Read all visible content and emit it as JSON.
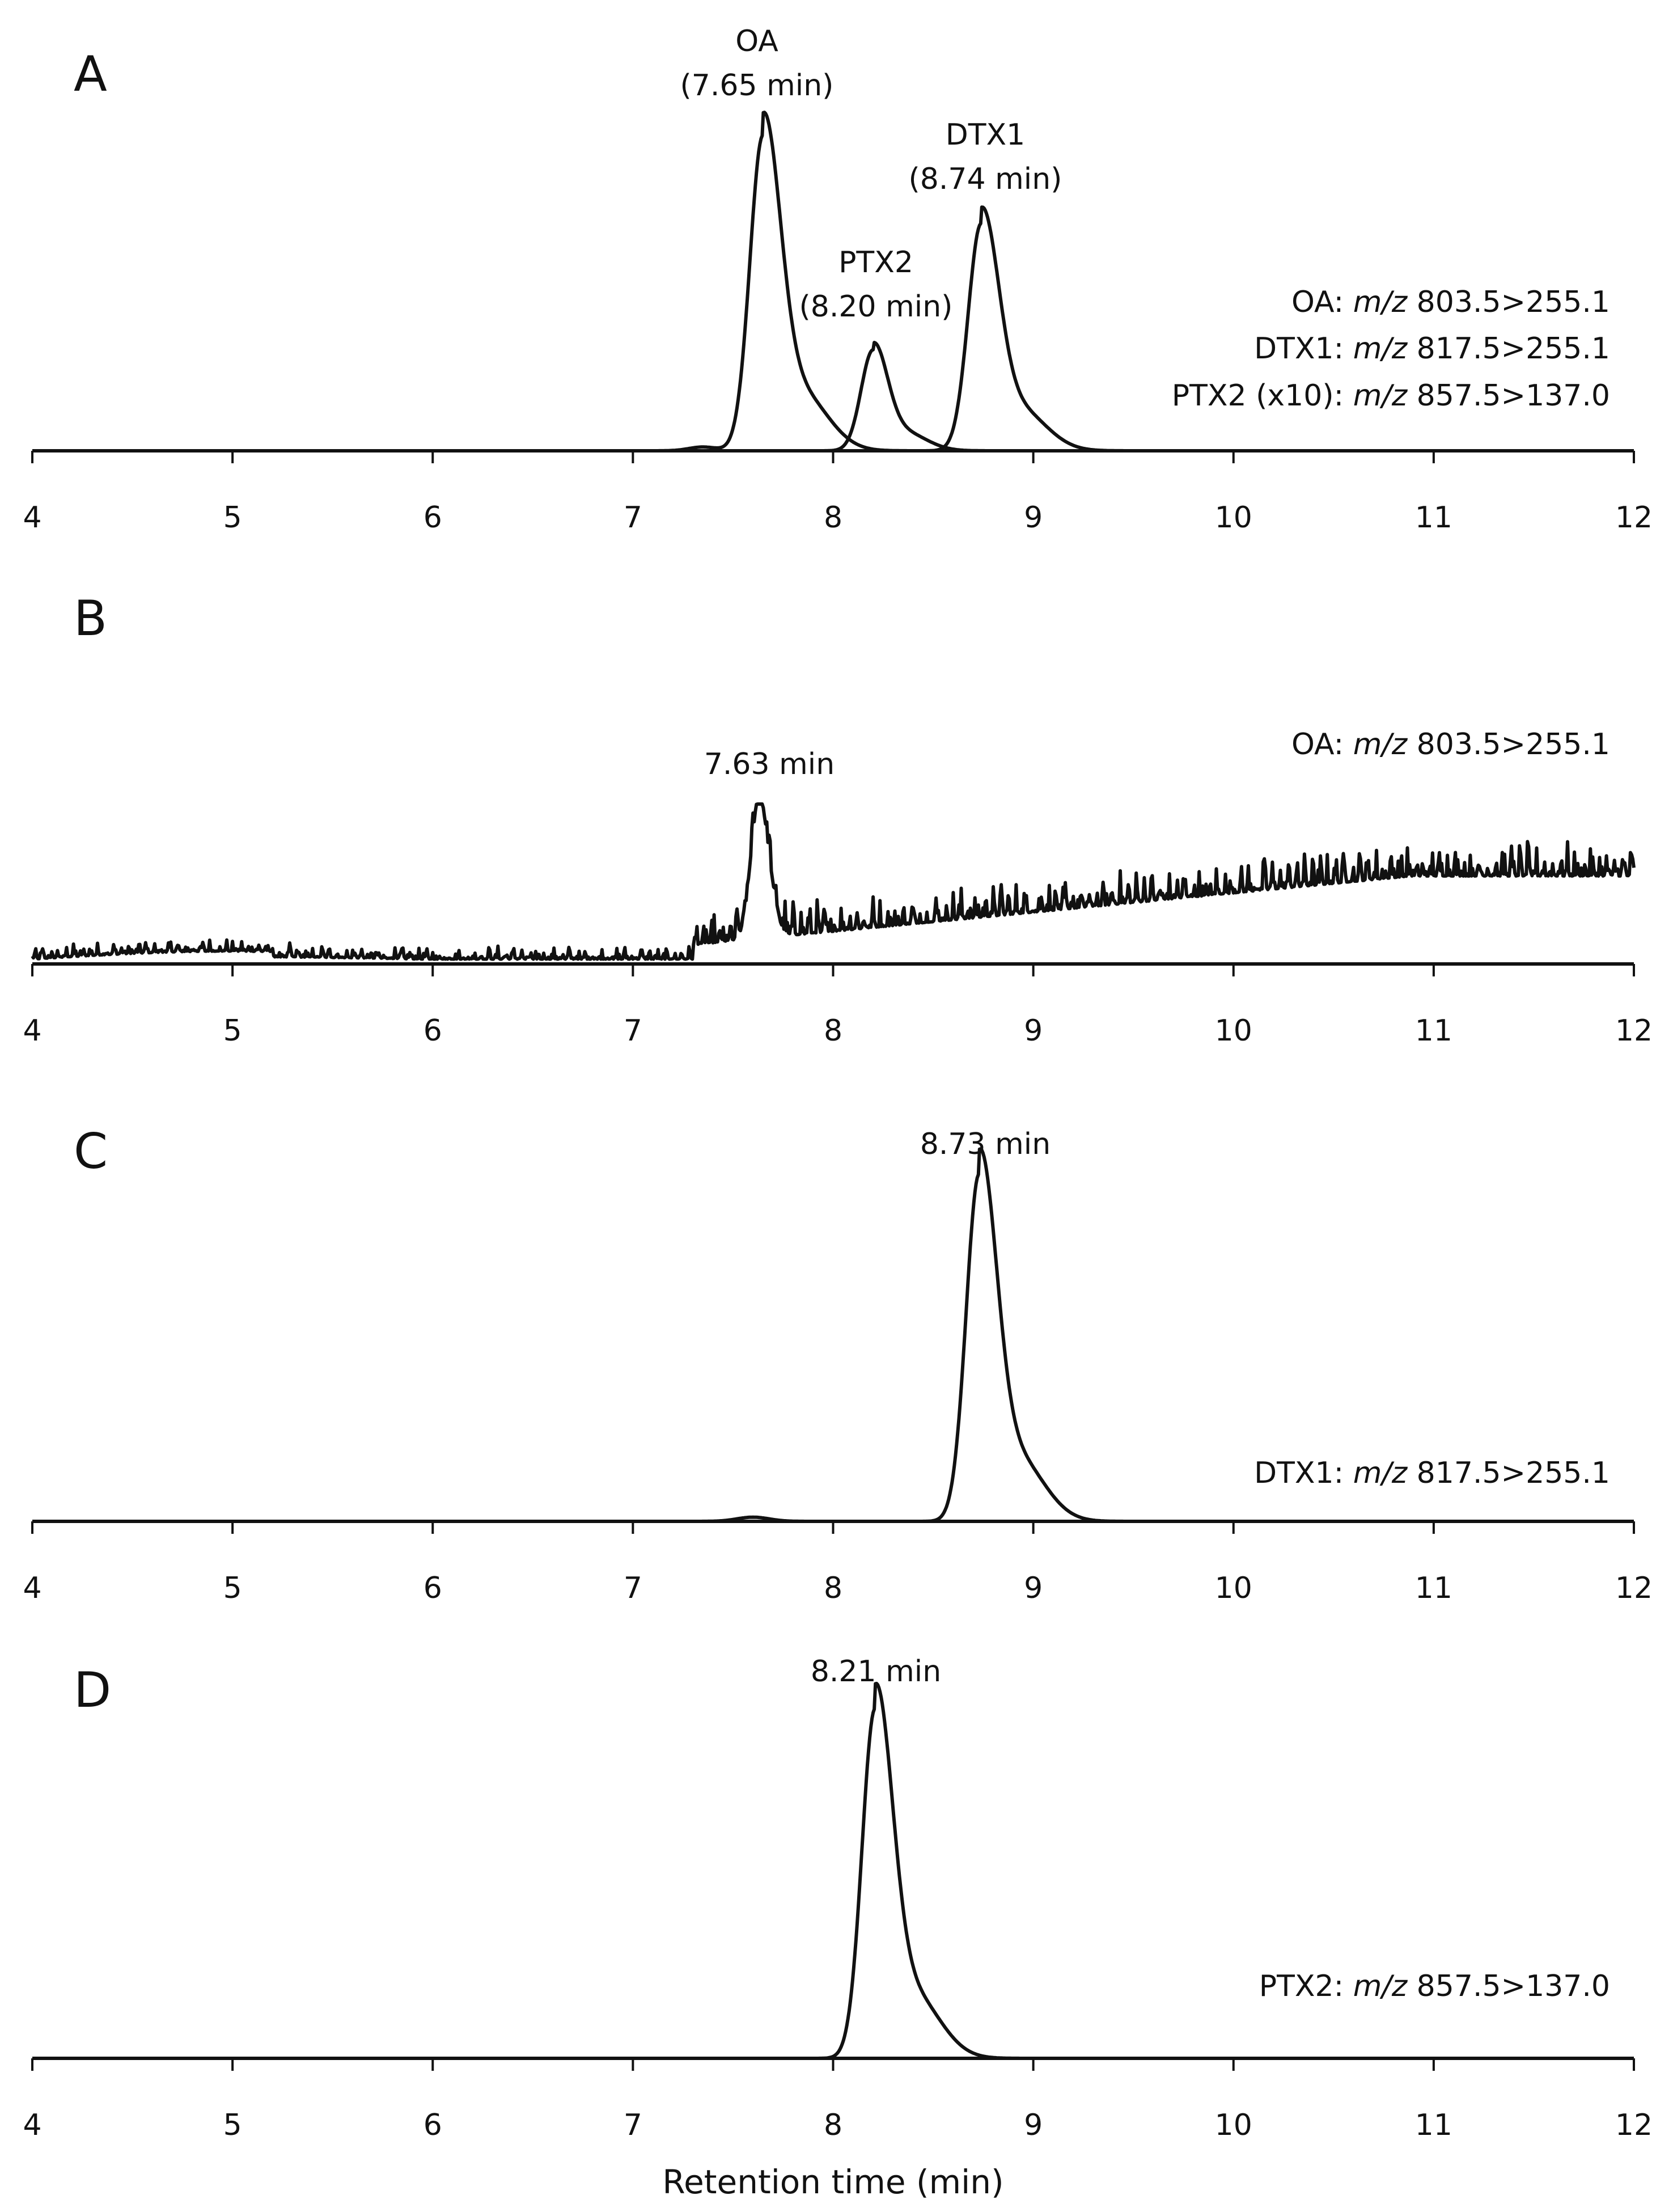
{
  "chart_data": [
    {
      "panel": "A",
      "type": "line",
      "title": "A",
      "xlabel": "",
      "ylabel": "",
      "xlim": [
        4,
        12
      ],
      "x_ticks": [
        4,
        5,
        6,
        7,
        8,
        9,
        10,
        11,
        12
      ],
      "series": [
        {
          "name": "OA",
          "peak_x": 7.65,
          "peak_y": 1.0
        },
        {
          "name": "PTX2 (x10)",
          "peak_x": 8.2,
          "peak_y": 0.32
        },
        {
          "name": "DTX1",
          "peak_x": 8.74,
          "peak_y": 0.72
        }
      ],
      "peak_annotations": [
        {
          "lines": [
            "OA",
            "(7.65 min)"
          ]
        },
        {
          "lines": [
            "PTX2",
            "(8.20 min)"
          ]
        },
        {
          "lines": [
            "DTX1",
            "(8.74 min)"
          ]
        }
      ],
      "transitions": [
        {
          "compound": "OA:",
          "mz": "m/z",
          "value": "803.5>255.1"
        },
        {
          "compound": "DTX1:",
          "mz": "m/z",
          "value": "817.5>255.1"
        },
        {
          "compound": "PTX2 (x10):",
          "mz": "m/z",
          "value": "857.5>137.0"
        }
      ]
    },
    {
      "panel": "B",
      "type": "line",
      "title": "B",
      "xlabel": "",
      "ylabel": "",
      "xlim": [
        4,
        12
      ],
      "x_ticks": [
        4,
        5,
        6,
        7,
        8,
        9,
        10,
        11,
        12
      ],
      "series": [
        {
          "name": "OA",
          "peak_x": 7.63,
          "peak_y": 1.0,
          "noise": true
        }
      ],
      "peak_annotations": [
        {
          "lines": [
            "7.63 min"
          ]
        }
      ],
      "transitions": [
        {
          "compound": "OA:",
          "mz": "m/z",
          "value": "803.5>255.1"
        }
      ]
    },
    {
      "panel": "C",
      "type": "line",
      "title": "C",
      "xlabel": "",
      "ylabel": "",
      "xlim": [
        4,
        12
      ],
      "x_ticks": [
        4,
        5,
        6,
        7,
        8,
        9,
        10,
        11,
        12
      ],
      "series": [
        {
          "name": "DTX1",
          "peak_x": 8.73,
          "peak_y": 1.0
        }
      ],
      "peak_annotations": [
        {
          "lines": [
            "8.73 min"
          ]
        }
      ],
      "transitions": [
        {
          "compound": "DTX1:",
          "mz": "m/z",
          "value": "817.5>255.1"
        }
      ]
    },
    {
      "panel": "D",
      "type": "line",
      "title": "D",
      "xlabel": "Retention time (min)",
      "ylabel": "",
      "xlim": [
        4,
        12
      ],
      "x_ticks": [
        4,
        5,
        6,
        7,
        8,
        9,
        10,
        11,
        12
      ],
      "series": [
        {
          "name": "PTX2",
          "peak_x": 8.21,
          "peak_y": 1.0
        }
      ],
      "peak_annotations": [
        {
          "lines": [
            "8.21 min"
          ]
        }
      ],
      "transitions": [
        {
          "compound": "PTX2:",
          "mz": "m/z",
          "value": "857.5>137.0"
        }
      ]
    }
  ]
}
